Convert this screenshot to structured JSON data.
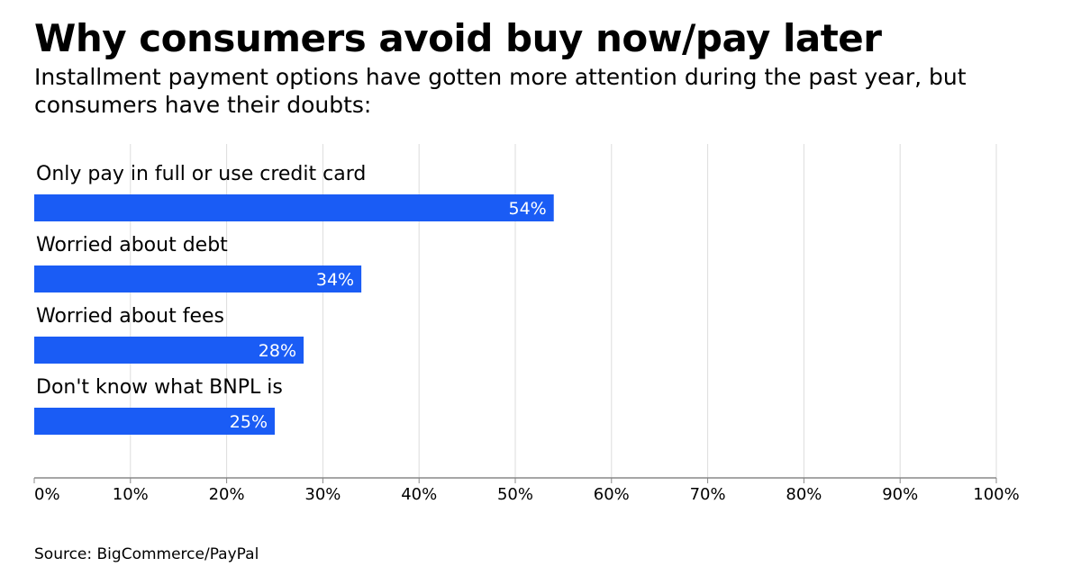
{
  "title": "Why consumers avoid buy now/pay later",
  "subtitle": "Installment payment options have gotten more attention during the past year, but consumers have their doubts:",
  "source": "Source: BigCommerce/PayPal",
  "colors": {
    "bar": "#1a5cf5",
    "bar_label": "#ffffff",
    "grid": "#dddddd",
    "axis": "#888888",
    "text": "#000000"
  },
  "chart_data": {
    "type": "bar",
    "orientation": "horizontal",
    "categories": [
      "Only pay in full or use credit card",
      "Worried about debt",
      "Worried about fees",
      "Don't know what BNPL is"
    ],
    "values": [
      54,
      34,
      28,
      25
    ],
    "value_labels": [
      "54%",
      "34%",
      "28%",
      "25%"
    ],
    "xlim": [
      0,
      100
    ],
    "xticks": [
      0,
      10,
      20,
      30,
      40,
      50,
      60,
      70,
      80,
      90,
      100
    ],
    "xtick_labels": [
      "0%",
      "10%",
      "20%",
      "30%",
      "40%",
      "50%",
      "60%",
      "70%",
      "80%",
      "90%",
      "100%"
    ],
    "grid": true,
    "legend": "none"
  }
}
